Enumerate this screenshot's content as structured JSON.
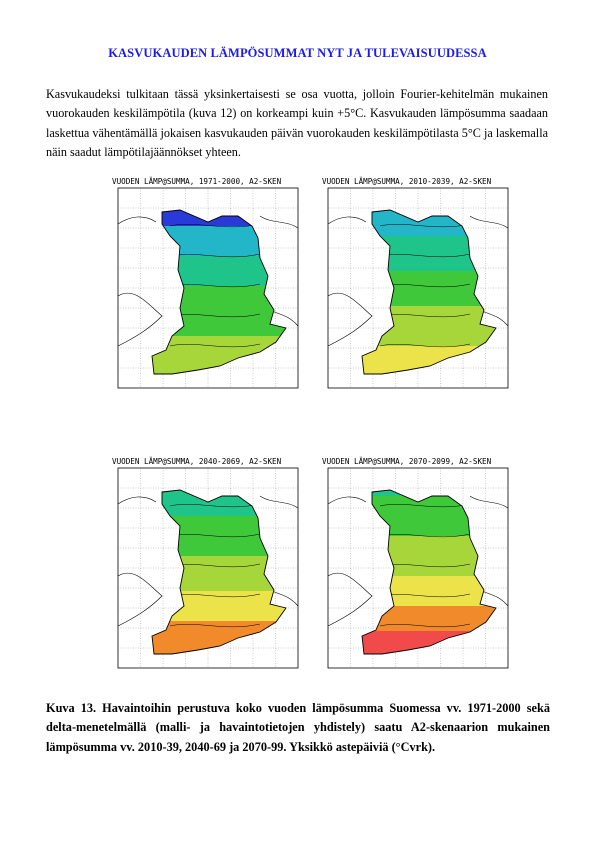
{
  "page": {
    "title": "KASVUKAUDEN LÄMPÖSUMMAT NYT JA TULEVAISUUDESSA",
    "paragraph": "Kasvukaudeksi tulkitaan tässä yksinkertaisesti se osa vuotta, jolloin Fourier-kehitelmän mukainen vuorokauden keskilämpötila (kuva 12) on korkeampi kuin +5°C. Kasvukauden lämpösumma saadaan laskettua vähentämällä jokaisen kasvukauden päivän vuorokauden keskilämpötilasta 5°C ja laskemalla näin saadut lämpötilajäännökset yhteen.",
    "caption": "Kuva 13. Havaintoihin perustuva koko vuoden lämpösumma Suomessa vv. 1971-2000 sekä delta-menetelmällä (malli- ja havaintotietojen yhdistely) saatu A2-skenaarion mukainen lämpösumma vv. 2010-39, 2040-69 ja 2070-99. Yksikkö astepäiviä (°Cvrk)."
  },
  "maps": [
    {
      "title": "VUODEN LÄMP@SUMMA, 1971-2000, A2-SKEN",
      "scheme": "p1"
    },
    {
      "title": "VUODEN LÄMP@SUMMA, 2010-2039, A2-SKEN",
      "scheme": "p2"
    },
    {
      "title": "VUODEN LÄMP@SUMMA, 2040-2069, A2-SKEN",
      "scheme": "p3"
    },
    {
      "title": "VUODEN LÄMP@SUMMA, 2070-2099, A2-SKEN",
      "scheme": "p4"
    }
  ],
  "colors": {
    "title": "#1a1aee",
    "purple": "#7a1fc4",
    "blue": "#2a3ad8",
    "cyan": "#23b6c9",
    "teal": "#1fc48a",
    "green": "#3ec83a",
    "lime": "#a6d63a",
    "yellow": "#ece24a",
    "orange": "#f08a2a",
    "red": "#f04a4a"
  }
}
